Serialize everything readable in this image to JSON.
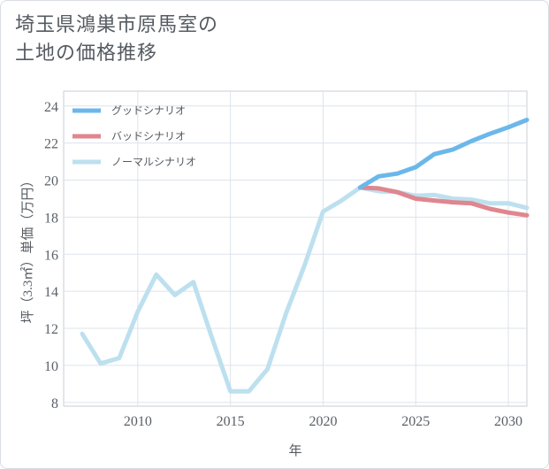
{
  "title": {
    "line1": "埼玉県鴻巣市原馬室の",
    "line2": "土地の価格推移"
  },
  "chart_data": {
    "type": "line",
    "xlabel": "年",
    "ylabel": "坪（3.3㎡）単価（万円）",
    "xlim": [
      2006,
      2031
    ],
    "ylim": [
      7.8,
      24.8
    ],
    "xticks": [
      2010,
      2015,
      2020,
      2025,
      2030
    ],
    "yticks": [
      8,
      10,
      12,
      14,
      16,
      18,
      20,
      22,
      24
    ],
    "legend_position": "top-left",
    "series": [
      {
        "name": "グッドシナリオ",
        "color": "#6cb7ea",
        "x": [
          2022,
          2023,
          2024,
          2025,
          2026,
          2027,
          2028,
          2029,
          2030,
          2031
        ],
        "y": [
          19.6,
          20.2,
          20.35,
          20.7,
          21.4,
          21.65,
          22.1,
          22.5,
          22.85,
          23.25
        ]
      },
      {
        "name": "バッドシナリオ",
        "color": "#e0868e",
        "x": [
          2022,
          2023,
          2024,
          2025,
          2026,
          2027,
          2028,
          2029,
          2030,
          2031
        ],
        "y": [
          19.6,
          19.55,
          19.35,
          19.0,
          18.9,
          18.8,
          18.75,
          18.45,
          18.25,
          18.1
        ]
      },
      {
        "name": "ノーマルシナリオ",
        "color": "#bde0ef",
        "x": [
          2007,
          2008,
          2009,
          2010,
          2011,
          2012,
          2013,
          2014,
          2015,
          2016,
          2017,
          2018,
          2019,
          2020,
          2021,
          2022,
          2023,
          2024,
          2025,
          2026,
          2027,
          2028,
          2029,
          2030,
          2031
        ],
        "y": [
          11.7,
          10.1,
          10.4,
          12.9,
          14.9,
          13.8,
          14.5,
          11.5,
          8.6,
          8.6,
          9.8,
          12.8,
          15.4,
          18.3,
          18.9,
          19.6,
          19.4,
          19.35,
          19.15,
          19.2,
          19.0,
          18.95,
          18.75,
          18.75,
          18.5
        ]
      }
    ]
  }
}
